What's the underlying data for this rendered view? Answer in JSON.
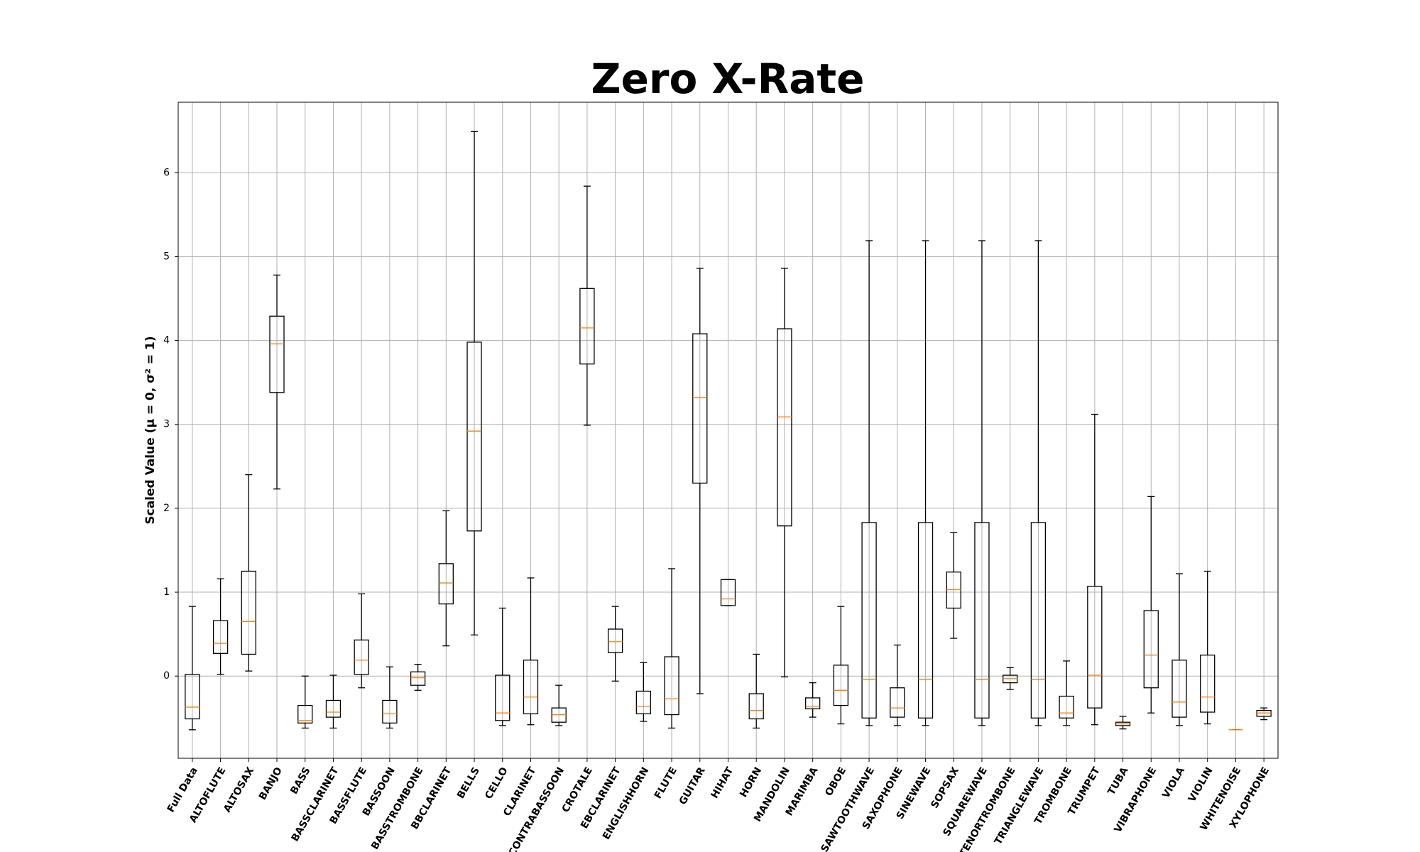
{
  "chart_data": {
    "type": "box",
    "title": "Zero X-Rate",
    "y_label": "Scaled Value (μ = 0, σ² = 1)",
    "categories": [
      "Full Data",
      "ALTOFLUTE",
      "ALTOSAX",
      "BANJO",
      "BASS",
      "BASSCLARINET",
      "BASSFLUTE",
      "BASSOON",
      "BASSTROMBONE",
      "BBCLARINET",
      "BELLS",
      "CELLO",
      "CLARINET",
      "CONTRABASSOON",
      "CROTALE",
      "EBCLARINET",
      "ENGLISHHORN",
      "FLUTE",
      "GUITAR",
      "HIHAT",
      "HORN",
      "MANDOLIN",
      "MARIMBA",
      "OBOE",
      "SAWTOOTHWAVE",
      "SAXOPHONE",
      "SINEWAVE",
      "SOPSAX",
      "SQUAREWAVE",
      "TENORTROMBONE",
      "TRIANGLEWAVE",
      "TROMBONE",
      "TRUMPET",
      "TUBA",
      "VIBRAPHONE",
      "VIOLA",
      "VIOLIN",
      "WHITENOISE",
      "XYLOPHONE"
    ],
    "whislo": [
      -0.64,
      0.02,
      0.06,
      2.23,
      -0.62,
      -0.62,
      -0.14,
      -0.62,
      -0.17,
      0.36,
      0.49,
      -0.59,
      -0.58,
      -0.59,
      2.99,
      -0.06,
      -0.54,
      -0.62,
      -0.21,
      0.84,
      -0.62,
      -0.01,
      -0.49,
      -0.57,
      -0.59,
      -0.59,
      -0.59,
      0.45,
      -0.59,
      -0.16,
      -0.59,
      -0.59,
      -0.58,
      -0.63,
      -0.44,
      -0.59,
      -0.57,
      -0.64,
      -0.52
    ],
    "q1": [
      -0.51,
      0.27,
      0.26,
      3.38,
      -0.56,
      -0.49,
      0.02,
      -0.56,
      -0.11,
      0.86,
      1.73,
      -0.53,
      -0.45,
      -0.55,
      3.72,
      0.28,
      -0.45,
      -0.46,
      2.3,
      0.84,
      -0.51,
      1.79,
      -0.39,
      -0.35,
      -0.5,
      -0.49,
      -0.5,
      0.81,
      -0.5,
      -0.08,
      -0.5,
      -0.5,
      -0.38,
      -0.59,
      -0.14,
      -0.49,
      -0.43,
      -0.64,
      -0.48
    ],
    "median": [
      -0.37,
      0.39,
      0.65,
      3.96,
      -0.53,
      -0.43,
      0.19,
      -0.45,
      -0.02,
      1.11,
      2.92,
      -0.44,
      -0.25,
      -0.46,
      4.15,
      0.41,
      -0.36,
      -0.27,
      3.32,
      0.92,
      -0.41,
      3.09,
      -0.36,
      -0.17,
      -0.04,
      -0.38,
      -0.04,
      1.03,
      -0.04,
      -0.03,
      -0.04,
      -0.44,
      0.01,
      -0.57,
      0.25,
      -0.31,
      -0.25,
      -0.64,
      -0.44
    ],
    "q3": [
      0.02,
      0.66,
      1.25,
      4.29,
      -0.35,
      -0.29,
      0.43,
      -0.29,
      0.05,
      1.34,
      3.98,
      0.01,
      0.19,
      -0.38,
      4.62,
      0.56,
      -0.18,
      0.23,
      4.08,
      1.15,
      -0.21,
      4.14,
      -0.26,
      0.13,
      1.83,
      -0.14,
      1.83,
      1.24,
      1.83,
      0.01,
      1.83,
      -0.24,
      1.07,
      -0.55,
      0.78,
      0.19,
      0.25,
      -0.64,
      -0.41
    ],
    "whishi": [
      0.83,
      1.16,
      2.4,
      4.78,
      0,
      0.01,
      0.98,
      0.11,
      0.14,
      1.97,
      6.49,
      0.81,
      1.17,
      -0.11,
      5.84,
      0.83,
      0.16,
      1.28,
      4.86,
      1.15,
      0.26,
      4.86,
      -0.08,
      0.83,
      5.19,
      0.37,
      5.19,
      1.71,
      5.19,
      0.1,
      5.19,
      0.18,
      3.12,
      -0.48,
      2.14,
      1.22,
      1.25,
      -0.64,
      -0.38
    ],
    "ylim": [
      -0.98,
      6.84
    ],
    "yticks": [
      0,
      1,
      2,
      3,
      4,
      5,
      6
    ],
    "grid": true,
    "box_color": "#000000",
    "median_color": "#ff7f0e"
  }
}
